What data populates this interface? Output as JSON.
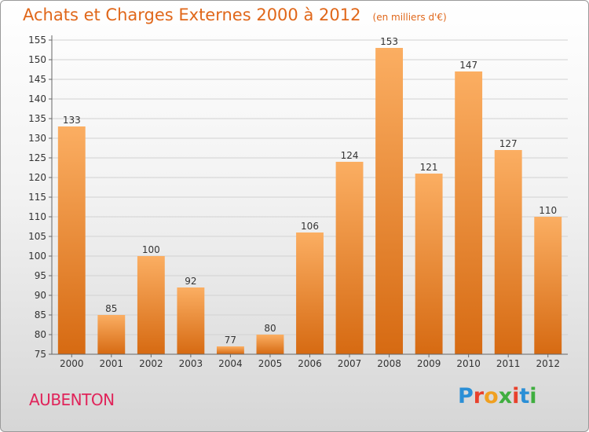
{
  "header": {
    "title": "Achats et Charges Externes 2000 à 2012",
    "subtitle": "(en milliers d'€)"
  },
  "commune": "AUBENTON",
  "logo": {
    "text": "Proxiti",
    "letter_colors": [
      "#2b8fd6",
      "#e8412c",
      "#f0a020",
      "#3fae3f",
      "#e8412c",
      "#2b8fd6",
      "#3fae3f"
    ]
  },
  "colors": {
    "accent": "#e0671a",
    "commune": "#e0245a",
    "bar_light": "#fbae62",
    "bar_dark": "#d66a12"
  },
  "chart_data": {
    "type": "bar",
    "title": "Achats et Charges Externes 2000 à 2012",
    "subtitle": "(en milliers d'€)",
    "categories": [
      "2000",
      "2001",
      "2002",
      "2003",
      "2004",
      "2005",
      "2006",
      "2007",
      "2008",
      "2009",
      "2010",
      "2011",
      "2012"
    ],
    "values": [
      133,
      85,
      100,
      92,
      77,
      80,
      106,
      124,
      153,
      121,
      147,
      127,
      110
    ],
    "ylim": [
      75,
      155
    ],
    "yticks": [
      75,
      80,
      85,
      90,
      95,
      100,
      105,
      110,
      115,
      120,
      125,
      130,
      135,
      140,
      145,
      150,
      155
    ],
    "grid": true,
    "xlabel": "",
    "ylabel": ""
  }
}
